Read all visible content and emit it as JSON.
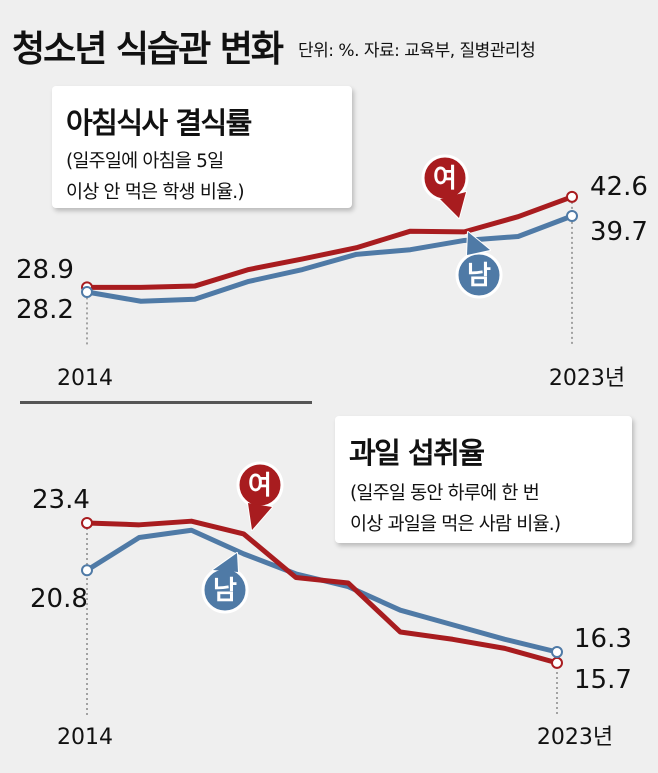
{
  "header": {
    "title": "청소년 식습관 변화",
    "source": "단위: %. 자료: 교육부, 질병관리청"
  },
  "colors": {
    "female": "#a81c1f",
    "male": "#4f7aa6",
    "background": "#efefef"
  },
  "chart_data": [
    {
      "type": "line",
      "title": "아침식사 결식률",
      "subtitle": "(일주일에 아침을 5일\n이상 안 먹은 학생 비율.)",
      "x": [
        2014,
        2015,
        2016,
        2017,
        2018,
        2019,
        2020,
        2021,
        2022,
        2023
      ],
      "x_tick_labels": [
        "2014",
        "2023년"
      ],
      "series": [
        {
          "name": "여",
          "color": "#a81c1f",
          "values": [
            28.9,
            28.9,
            29.1,
            31.6,
            33.2,
            34.9,
            37.4,
            37.3,
            39.6,
            42.6
          ]
        },
        {
          "name": "남",
          "color": "#4f7aa6",
          "values": [
            28.2,
            26.8,
            27.1,
            29.8,
            31.6,
            33.9,
            34.6,
            36.0,
            36.6,
            39.7
          ]
        }
      ],
      "labels": {
        "start_top": "28.9",
        "start_bottom": "28.2",
        "end_top": "42.6",
        "end_bottom": "39.7"
      },
      "grid": false
    },
    {
      "type": "line",
      "title": "과일 섭취율",
      "subtitle": "(일주일 동안 하루에 한 번\n이상 과일을 먹은 사람 비율.)",
      "x": [
        2014,
        2015,
        2016,
        2017,
        2018,
        2019,
        2020,
        2021,
        2022,
        2023
      ],
      "x_tick_labels": [
        "2014",
        "2023년"
      ],
      "series": [
        {
          "name": "여",
          "color": "#a81c1f",
          "values": [
            23.4,
            23.3,
            23.5,
            22.8,
            20.4,
            20.1,
            17.4,
            17.0,
            16.5,
            15.7
          ]
        },
        {
          "name": "남",
          "color": "#4f7aa6",
          "values": [
            20.8,
            22.6,
            23.0,
            21.7,
            20.6,
            19.9,
            18.6,
            17.8,
            17.0,
            16.3
          ]
        }
      ],
      "labels": {
        "start_top": "23.4",
        "start_bottom": "20.8",
        "end_top": "16.3",
        "end_bottom": "15.7"
      },
      "grid": false
    }
  ]
}
